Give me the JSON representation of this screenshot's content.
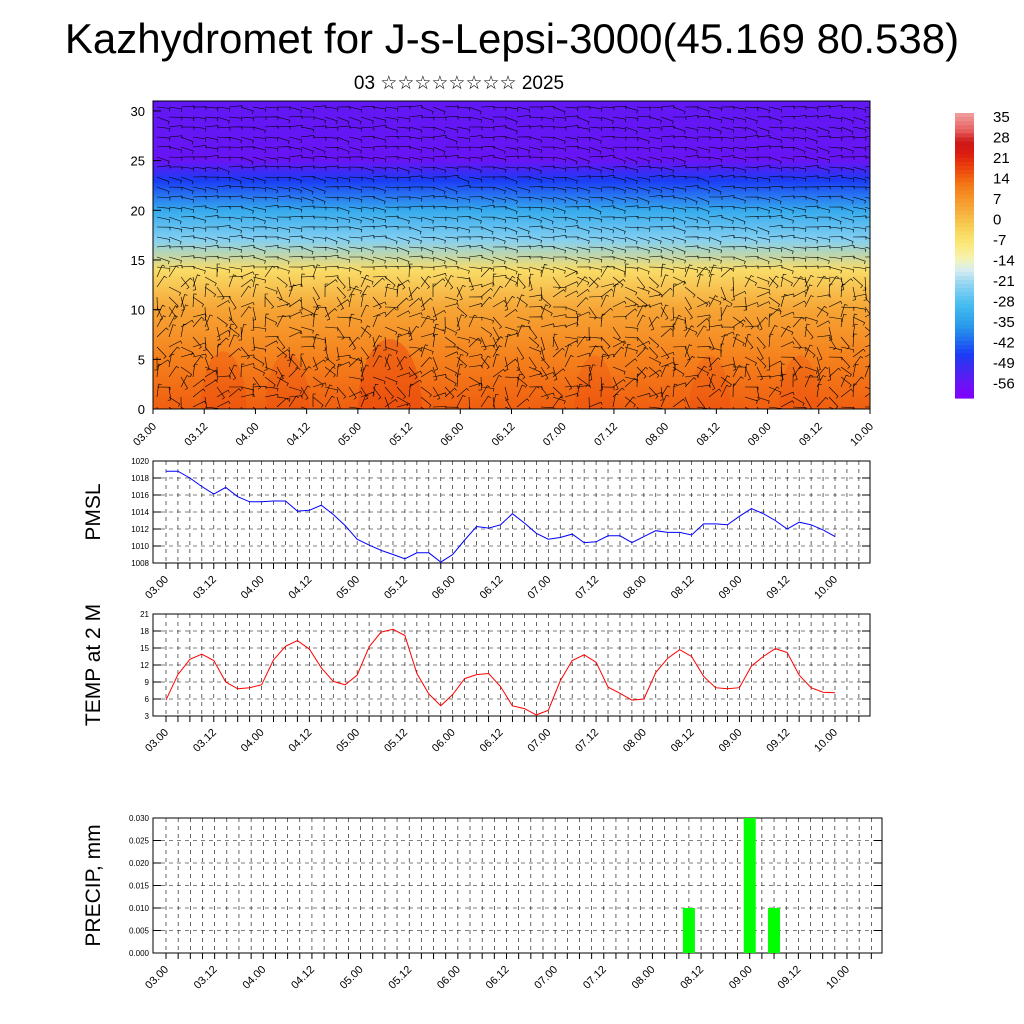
{
  "header": {
    "title": "Kazhydromet for J-s-Lepsi-3000(45.169 80.538)",
    "subtitle": "03 ☆☆☆☆☆☆☆☆ 2025"
  },
  "colors": {
    "pmsl_line": "#0000ff",
    "temp_line": "#ff0000",
    "precip_bar": "#00ff00",
    "wind_barb": "#000000"
  },
  "chart_data": [
    {
      "type": "heatmap",
      "name": "cross-section",
      "x_ticks": [
        "03.00",
        "03.12",
        "04.00",
        "04.12",
        "05.00",
        "05.12",
        "06.00",
        "06.12",
        "07.00",
        "07.12",
        "08.00",
        "08.12",
        "09.00",
        "09.12",
        "10.00"
      ],
      "y_ticks": [
        "0",
        "5",
        "10",
        "15",
        "20",
        "25",
        "30"
      ],
      "ylim": [
        0,
        31
      ],
      "colorbar": {
        "labels": [
          "35",
          "28",
          "21",
          "14",
          "7",
          "0",
          "-7",
          "-14",
          "-21",
          "-28",
          "-35",
          "-42",
          "-49",
          "-56"
        ],
        "range": [
          -60,
          38
        ]
      },
      "overlay": "wind barbs",
      "levels_temperature_approx": [
        {
          "level": 0,
          "value": 16
        },
        {
          "level": 5,
          "value": 12
        },
        {
          "level": 10,
          "value": 6
        },
        {
          "level": 14,
          "value": -4
        },
        {
          "level": 17,
          "value": -22
        },
        {
          "level": 20,
          "value": -32
        },
        {
          "level": 23,
          "value": -45
        },
        {
          "level": 25,
          "value": -55
        },
        {
          "level": 31,
          "value": -54
        }
      ]
    },
    {
      "type": "line",
      "name": "pmsl",
      "ylabel": "PMSL",
      "ylim": [
        1008,
        1020
      ],
      "y_ticks": [
        "1008",
        "1010",
        "1012",
        "1014",
        "1016",
        "1018",
        "1020"
      ],
      "x_ticks": [
        "03.00",
        "03.12",
        "04.00",
        "04.12",
        "05.00",
        "05.12",
        "06.00",
        "06.12",
        "07.00",
        "07.12",
        "08.00",
        "08.12",
        "09.00",
        "09.12",
        "10.00"
      ],
      "x_step_hours": 3,
      "values": [
        1018.8,
        1018.8,
        1018,
        1017,
        1016.1,
        1016.9,
        1015.8,
        1015.2,
        1015.2,
        1015.3,
        1015.3,
        1014.1,
        1014.2,
        1014.8,
        1013.7,
        1012.4,
        1010.8,
        1010.1,
        1009.5,
        1009,
        1008.5,
        1009.2,
        1009.2,
        1008.1,
        1009,
        1010.7,
        1012.3,
        1012.1,
        1012.5,
        1013.8,
        1012.7,
        1011.5,
        1010.8,
        1011,
        1011.4,
        1010.4,
        1010.5,
        1011.2,
        1011.2,
        1010.4,
        1011.1,
        1011.8,
        1011.6,
        1011.6,
        1011.3,
        1012.6,
        1012.6,
        1012.5,
        1013.5,
        1014.4,
        1013.8,
        1013,
        1012,
        1012.8,
        1012.5,
        1011.9,
        1011.1
      ]
    },
    {
      "type": "line",
      "name": "temp2m",
      "ylabel": "TEMP at 2 M",
      "ylim": [
        3,
        21
      ],
      "y_ticks": [
        "3",
        "6",
        "9",
        "12",
        "15",
        "18",
        "21"
      ],
      "x_ticks": [
        "03.00",
        "03.12",
        "04.00",
        "04.12",
        "05.00",
        "05.12",
        "06.00",
        "06.12",
        "07.00",
        "07.12",
        "08.00",
        "08.12",
        "09.00",
        "09.12",
        "10.00"
      ],
      "x_step_hours": 3,
      "values": [
        5.8,
        10.3,
        13,
        13.9,
        12.8,
        9,
        7.8,
        8,
        8.5,
        12.9,
        15.3,
        16.3,
        14.8,
        11.5,
        9.1,
        8.5,
        10.2,
        15.2,
        17.8,
        18.3,
        17.2,
        10.5,
        6.9,
        4.8,
        6.8,
        9.6,
        10.3,
        10.5,
        8.2,
        4.8,
        4.3,
        3.2,
        4,
        9.2,
        12.8,
        13.8,
        12.5,
        8.1,
        7,
        5.8,
        6,
        10.7,
        13.2,
        14.7,
        13.5,
        10,
        8,
        7.8,
        8,
        11.8,
        13.5,
        14.9,
        14.2,
        10.2,
        8,
        7.2,
        7.1
      ]
    },
    {
      "type": "bar",
      "name": "precip",
      "ylabel": "PRECIP, mm",
      "ylim": [
        0,
        0.03
      ],
      "y_ticks": [
        "0.000",
        "0.005",
        "0.010",
        "0.015",
        "0.020",
        "0.025",
        "0.030"
      ],
      "x_ticks": [
        "03.00",
        "03.12",
        "04.00",
        "04.12",
        "05.00",
        "05.12",
        "06.00",
        "06.12",
        "07.00",
        "07.12",
        "08.00",
        "08.12",
        "09.00",
        "09.12",
        "10.00"
      ],
      "bars": [
        {
          "x": "08.09",
          "value": 0.01
        },
        {
          "x": "09.00",
          "value": 0.03
        },
        {
          "x": "09.06",
          "value": 0.01
        }
      ]
    }
  ]
}
